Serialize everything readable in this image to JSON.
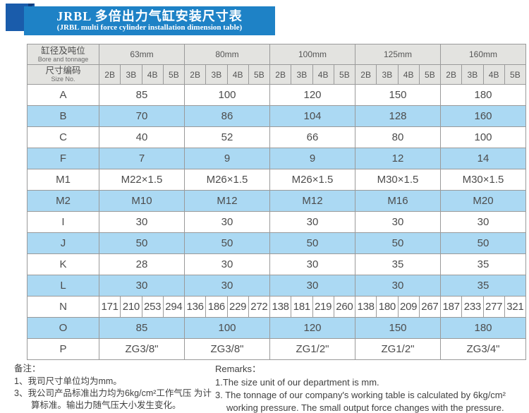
{
  "title": {
    "zh": "JRBL 多倍出力气缸安装尺寸表",
    "en": "(JRBL multi force cylinder installation dimension table)"
  },
  "table": {
    "corner": {
      "zh": "缸径及吨位",
      "en": "Bore and tonnage"
    },
    "size_no": {
      "zh": "尺寸编码",
      "en": "Size No."
    },
    "bores": [
      "63mm",
      "80mm",
      "100mm",
      "125mm",
      "160mm"
    ],
    "size_codes": [
      "2B",
      "3B",
      "4B",
      "5B"
    ],
    "rows": [
      {
        "label": "A",
        "kind": "merged",
        "values": [
          "85",
          "100",
          "120",
          "150",
          "180"
        ]
      },
      {
        "label": "B",
        "kind": "merged",
        "values": [
          "70",
          "86",
          "104",
          "128",
          "160"
        ]
      },
      {
        "label": "C",
        "kind": "merged",
        "values": [
          "40",
          "52",
          "66",
          "80",
          "100"
        ]
      },
      {
        "label": "F",
        "kind": "merged",
        "values": [
          "7",
          "9",
          "9",
          "12",
          "14"
        ]
      },
      {
        "label": "M1",
        "kind": "merged",
        "values": [
          "M22×1.5",
          "M26×1.5",
          "M26×1.5",
          "M30×1.5",
          "M30×1.5"
        ]
      },
      {
        "label": "M2",
        "kind": "merged",
        "values": [
          "M10",
          "M12",
          "M12",
          "M16",
          "M20"
        ]
      },
      {
        "label": "I",
        "kind": "merged",
        "values": [
          "30",
          "30",
          "30",
          "30",
          "30"
        ]
      },
      {
        "label": "J",
        "kind": "merged",
        "values": [
          "50",
          "50",
          "50",
          "50",
          "50"
        ]
      },
      {
        "label": "K",
        "kind": "merged",
        "values": [
          "28",
          "30",
          "30",
          "35",
          "35"
        ]
      },
      {
        "label": "L",
        "kind": "merged",
        "values": [
          "30",
          "30",
          "30",
          "30",
          "35"
        ]
      },
      {
        "label": "N",
        "kind": "per_code",
        "values": [
          [
            "171",
            "210",
            "253",
            "294"
          ],
          [
            "136",
            "186",
            "229",
            "272"
          ],
          [
            "138",
            "181",
            "219",
            "260"
          ],
          [
            "138",
            "180",
            "209",
            "267"
          ],
          [
            "187",
            "233",
            "277",
            "321"
          ]
        ]
      },
      {
        "label": "O",
        "kind": "merged",
        "values": [
          "85",
          "100",
          "120",
          "150",
          "180"
        ]
      },
      {
        "label": "P",
        "kind": "merged",
        "values": [
          "ZG3/8\"",
          "ZG3/8\"",
          "ZG1/2\"",
          "ZG1/2\"",
          "ZG3/4\""
        ]
      }
    ]
  },
  "notes": {
    "zh": {
      "heading": "备注：",
      "items": [
        "1、我司尺寸单位均为mm。",
        "3、我公司产品标准出力均为6kg/cm²工作气压 为计算标准。输出力随气压大小发生变化。"
      ]
    },
    "en": {
      "heading": "Remarks：",
      "items": [
        "1.The size unit of our department is mm.",
        "3. The tonnage of our company's working table is calculated by 6kg/cm² working pressure. The small output force changes with the pressure."
      ]
    }
  },
  "colors": {
    "banner_blue": "#1e82c6",
    "ribbon_navy": "#1a5cab",
    "row_blue": "#abd9f3",
    "header_gray": "#e3e3e0",
    "border_gray": "#9a9a9a"
  }
}
